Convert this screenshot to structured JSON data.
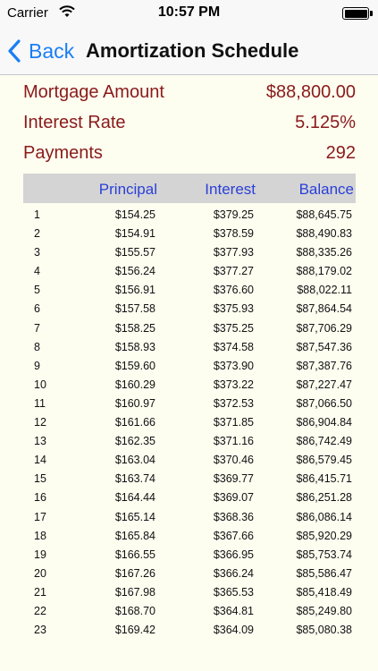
{
  "status_bar": {
    "carrier": "Carrier",
    "time": "10:57 PM"
  },
  "nav": {
    "back_label": "Back",
    "title": "Amortization Schedule"
  },
  "summary": [
    {
      "label": "Mortgage Amount",
      "value": "$88,800.00"
    },
    {
      "label": "Interest Rate",
      "value": "5.125%"
    },
    {
      "label": "Payments",
      "value": "292"
    }
  ],
  "table": {
    "headers": {
      "principal": "Principal",
      "interest": "Interest",
      "balance": "Balance"
    },
    "rows": [
      [
        "1",
        "$154.25",
        "$379.25",
        "$88,645.75"
      ],
      [
        "2",
        "$154.91",
        "$378.59",
        "$88,490.83"
      ],
      [
        "3",
        "$155.57",
        "$377.93",
        "$88,335.26"
      ],
      [
        "4",
        "$156.24",
        "$377.27",
        "$88,179.02"
      ],
      [
        "5",
        "$156.91",
        "$376.60",
        "$88,022.11"
      ],
      [
        "6",
        "$157.58",
        "$375.93",
        "$87,864.54"
      ],
      [
        "7",
        "$158.25",
        "$375.25",
        "$87,706.29"
      ],
      [
        "8",
        "$158.93",
        "$374.58",
        "$87,547.36"
      ],
      [
        "9",
        "$159.60",
        "$373.90",
        "$87,387.76"
      ],
      [
        "10",
        "$160.29",
        "$373.22",
        "$87,227.47"
      ],
      [
        "11",
        "$160.97",
        "$372.53",
        "$87,066.50"
      ],
      [
        "12",
        "$161.66",
        "$371.85",
        "$86,904.84"
      ],
      [
        "13",
        "$162.35",
        "$371.16",
        "$86,742.49"
      ],
      [
        "14",
        "$163.04",
        "$370.46",
        "$86,579.45"
      ],
      [
        "15",
        "$163.74",
        "$369.77",
        "$86,415.71"
      ],
      [
        "16",
        "$164.44",
        "$369.07",
        "$86,251.28"
      ],
      [
        "17",
        "$165.14",
        "$368.36",
        "$86,086.14"
      ],
      [
        "18",
        "$165.84",
        "$367.66",
        "$85,920.29"
      ],
      [
        "19",
        "$166.55",
        "$366.95",
        "$85,753.74"
      ],
      [
        "20",
        "$167.26",
        "$366.24",
        "$85,586.47"
      ],
      [
        "21",
        "$167.98",
        "$365.53",
        "$85,418.49"
      ],
      [
        "22",
        "$168.70",
        "$364.81",
        "$85,249.80"
      ],
      [
        "23",
        "$169.42",
        "$364.09",
        "$85,080.38"
      ]
    ]
  }
}
